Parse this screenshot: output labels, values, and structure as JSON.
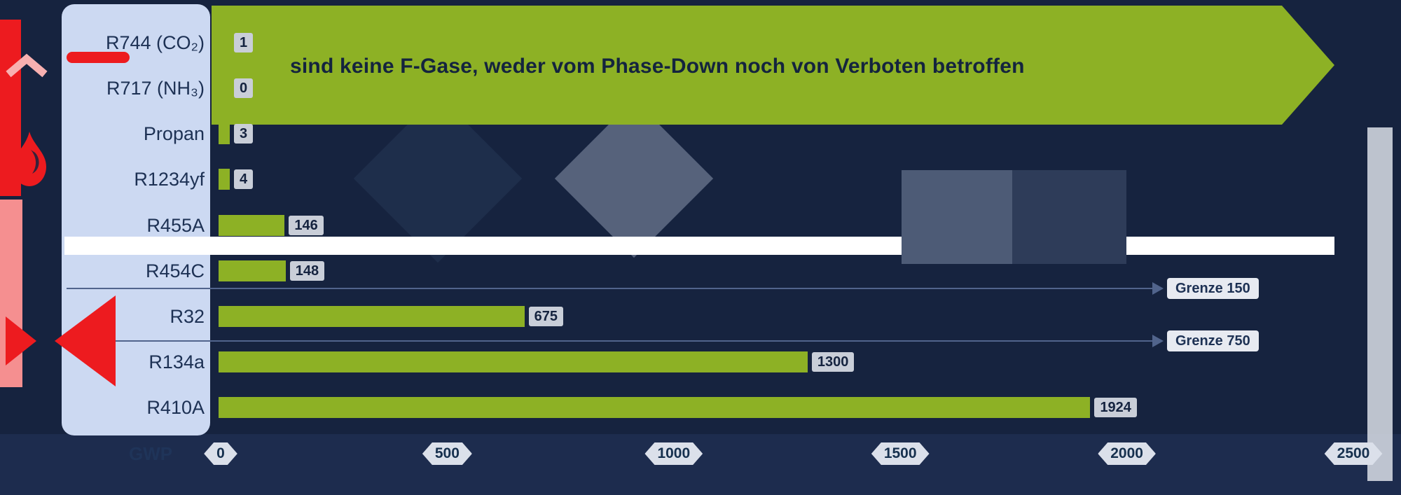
{
  "colors": {
    "background": "#16233f",
    "label_panel": "#ccd9f2",
    "bar_green": "#8db125",
    "accent_red": "#ed1b1f",
    "navy_text": "#1d3154",
    "divider_white": "#ffffff",
    "value_tag_bg": "#c9ced8"
  },
  "banner": {
    "text": "sind keine F-Gase, weder vom Phase-Down noch von Verboten betroffen"
  },
  "chart_data": {
    "type": "bar",
    "orientation": "horizontal",
    "title": "",
    "xlabel": "GWP",
    "categories": [
      "R744 (CO₂)",
      "R717 (NH₃)",
      "Propan",
      "R1234yf",
      "R455A",
      "R454C",
      "R32",
      "R134a",
      "R410A"
    ],
    "values": [
      1,
      0,
      3,
      4,
      146,
      148,
      675,
      1300,
      1924
    ],
    "value_labels": [
      "1",
      "0",
      "3",
      "4",
      "146",
      "148",
      "675",
      "1300",
      "1924"
    ],
    "xlim": [
      0,
      2500
    ],
    "x_ticks": [
      0,
      500,
      1000,
      1500,
      2000,
      2500
    ],
    "x_tick_labels": [
      "0",
      "500",
      "1000",
      "1500",
      "2000",
      "2500"
    ],
    "grid": false,
    "legend": null,
    "banner_note": "sind keine F-Gase, weder vom Phase-Down noch von Verboten betroffen",
    "banner_covers": [
      "R744 (CO₂)",
      "R717 (NH₃)",
      "Propan",
      "R1234yf"
    ],
    "annotations": [
      {
        "label": "Grenze 150",
        "value": 150
      },
      {
        "label": "Grenze 750",
        "value": 750
      }
    ]
  },
  "decorations": {
    "left_icons": [
      "red-up-arrow",
      "flame-icon",
      "red-bowtie-shape",
      "red-underline"
    ]
  }
}
